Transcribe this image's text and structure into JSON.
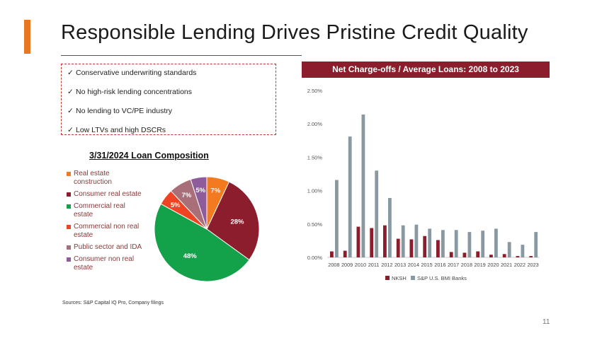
{
  "slide": {
    "title": "Responsible Lending Drives Pristine Credit Quality",
    "page_number": "11",
    "sources": "Sources: S&P Capital IQ Pro, Company filings",
    "accent_color": "#e87722"
  },
  "checklist": {
    "check_glyph": "✓",
    "items": [
      "Conservative underwriting standards",
      "No high-risk lending concentrations",
      "No lending to VC/PE industry",
      "Low LTVs and high DSCRs"
    ]
  },
  "chart_data": [
    {
      "type": "pie",
      "title": "3/31/2024 Loan Composition",
      "slices": [
        {
          "name": "Real estate construction",
          "value": 7,
          "label": "7%",
          "color": "#f47a20"
        },
        {
          "name": "Consumer real estate",
          "value": 28,
          "label": "28%",
          "color": "#8c1d2c"
        },
        {
          "name": "Commercial real estate",
          "value": 48,
          "label": "48%",
          "color": "#13a14a"
        },
        {
          "name": "Commercial non real estate",
          "value": 5,
          "label": "5%",
          "color": "#ef4423"
        },
        {
          "name": "Public sector and IDA",
          "value": 7,
          "label": "7%",
          "color": "#a86f78"
        },
        {
          "name": "Consumer non real estate",
          "value": 5,
          "label": "5%",
          "color": "#8e5c9a"
        }
      ],
      "legend_position": "left"
    },
    {
      "type": "bar",
      "title": "Net Charge-offs / Average Loans: 2008 to 2023",
      "categories": [
        "2008",
        "2009",
        "2010",
        "2011",
        "2012",
        "2013",
        "2014",
        "2015",
        "2016",
        "2017",
        "2018",
        "2019",
        "2020",
        "2021",
        "2022",
        "2023"
      ],
      "series": [
        {
          "name": "NKSH",
          "color": "#8c1d2c",
          "values": [
            0.09,
            0.1,
            0.46,
            0.44,
            0.48,
            0.28,
            0.27,
            0.32,
            0.26,
            0.08,
            0.07,
            0.09,
            0.04,
            0.05,
            0.02,
            0.02
          ]
        },
        {
          "name": "S&P U.S. BMI Banks",
          "color": "#8899a1",
          "values": [
            1.16,
            1.81,
            2.14,
            1.3,
            0.89,
            0.48,
            0.49,
            0.43,
            0.41,
            0.41,
            0.38,
            0.4,
            0.43,
            0.23,
            0.19,
            0.38
          ]
        }
      ],
      "y_ticks": [
        "0.00%",
        "0.50%",
        "1.00%",
        "1.50%",
        "2.00%",
        "2.50%"
      ],
      "ylim": [
        0,
        2.5
      ],
      "xlabel": "",
      "ylabel": "",
      "grid": false,
      "legend_position": "bottom"
    }
  ]
}
